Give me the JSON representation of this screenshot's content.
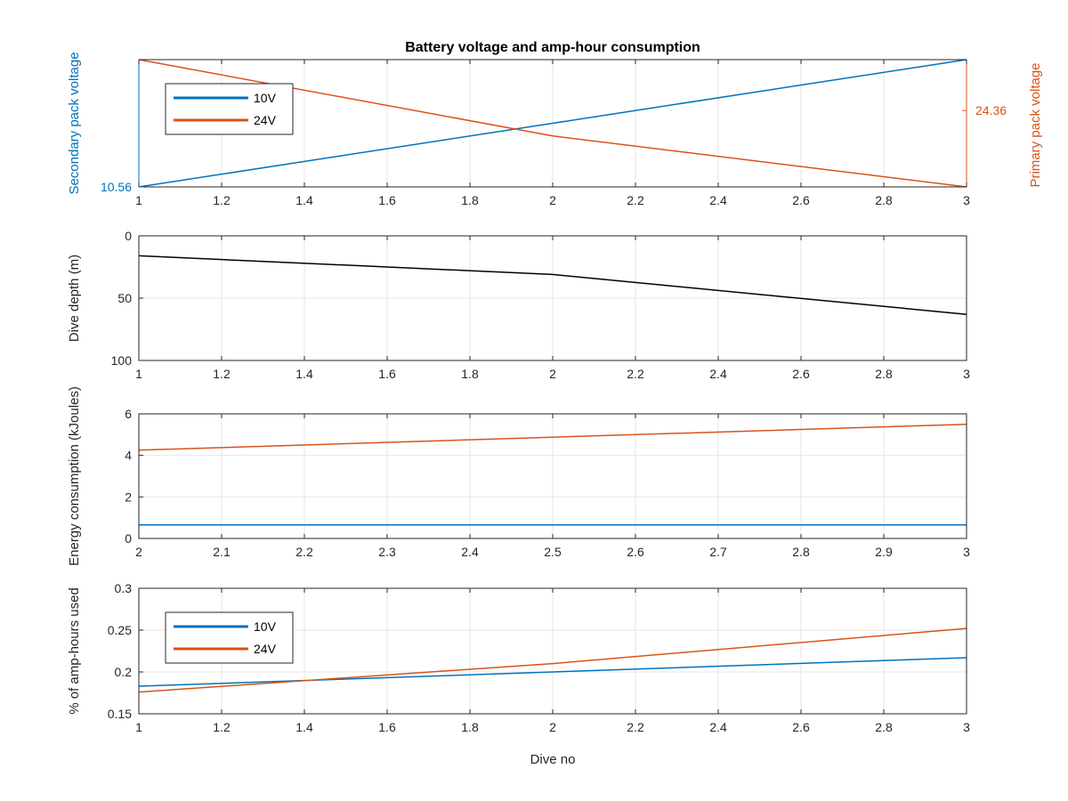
{
  "figure": {
    "title": "Battery voltage and amp-hour consumption",
    "colors": {
      "blue": "#0072BD",
      "orange": "#D95319",
      "black": "#000000",
      "grid": "#e6e6e6",
      "axis": "#262626"
    }
  },
  "chart_data": [
    {
      "id": "voltage",
      "type": "line",
      "title": "Battery voltage and amp-hour consumption",
      "xlabel": "",
      "ylabel_left": "Secondary pack voltage",
      "ylabel_right": "Primary pack voltage",
      "xlim": [
        1,
        3
      ],
      "xticks": [
        1,
        1.2,
        1.4,
        1.6,
        1.8,
        2,
        2.2,
        2.4,
        2.6,
        2.8,
        3
      ],
      "xticklabels": [
        "1",
        "1.2",
        "1.4",
        "1.6",
        "1.8",
        "2",
        "2.2",
        "2.4",
        "2.6",
        "2.8",
        "3"
      ],
      "ylim_left": [
        10.56,
        10.66
      ],
      "yticks_left": [
        10.56
      ],
      "yticklabels_left": [
        "10.56"
      ],
      "ylim_right": [
        24.3,
        24.4
      ],
      "yticks_right": [
        24.36
      ],
      "yticklabels_right": [
        "24.36"
      ],
      "grid": true,
      "legend": {
        "placement": "top-left",
        "entries": [
          "10V",
          "24V"
        ]
      },
      "series": [
        {
          "name": "10V",
          "axis": "left",
          "color": "#0072BD",
          "x": [
            1,
            2,
            3
          ],
          "y": [
            10.56,
            10.61,
            10.66
          ]
        },
        {
          "name": "24V",
          "axis": "right",
          "color": "#D95319",
          "x": [
            1,
            2,
            3
          ],
          "y": [
            24.4,
            24.34,
            24.3
          ]
        }
      ]
    },
    {
      "id": "depth",
      "type": "line",
      "xlabel": "",
      "ylabel": "Dive depth (m)",
      "xlim": [
        1,
        3
      ],
      "xticks": [
        1,
        1.2,
        1.4,
        1.6,
        1.8,
        2,
        2.2,
        2.4,
        2.6,
        2.8,
        3
      ],
      "xticklabels": [
        "1",
        "1.2",
        "1.4",
        "1.6",
        "1.8",
        "2",
        "2.2",
        "2.4",
        "2.6",
        "2.8",
        "3"
      ],
      "ylim": [
        0,
        100
      ],
      "y_reversed": true,
      "yticks": [
        0,
        50,
        100
      ],
      "yticklabels": [
        "0",
        "50",
        "100"
      ],
      "grid": true,
      "series": [
        {
          "color": "#000000",
          "x": [
            1,
            2,
            3
          ],
          "y": [
            16,
            31,
            63
          ]
        }
      ]
    },
    {
      "id": "energy",
      "type": "line",
      "xlabel": "",
      "ylabel": "Energy consumption (kJoules)",
      "xlim": [
        2,
        3
      ],
      "xticks": [
        2,
        2.1,
        2.2,
        2.3,
        2.4,
        2.5,
        2.6,
        2.7,
        2.8,
        2.9,
        3
      ],
      "xticklabels": [
        "2",
        "2.1",
        "2.2",
        "2.3",
        "2.4",
        "2.5",
        "2.6",
        "2.7",
        "2.8",
        "2.9",
        "3"
      ],
      "ylim": [
        0,
        6
      ],
      "yticks": [
        0,
        2,
        4,
        6
      ],
      "yticklabels": [
        "0",
        "2",
        "4",
        "6"
      ],
      "grid": true,
      "series": [
        {
          "color": "#0072BD",
          "x": [
            2,
            3
          ],
          "y": [
            0.65,
            0.65
          ]
        },
        {
          "color": "#D95319",
          "x": [
            2,
            3
          ],
          "y": [
            4.25,
            5.5
          ]
        }
      ]
    },
    {
      "id": "amphours",
      "type": "line",
      "xlabel": "Dive no",
      "ylabel": "% of amp-hours used",
      "xlim": [
        1,
        3
      ],
      "xticks": [
        1,
        1.2,
        1.4,
        1.6,
        1.8,
        2,
        2.2,
        2.4,
        2.6,
        2.8,
        3
      ],
      "xticklabels": [
        "1",
        "1.2",
        "1.4",
        "1.6",
        "1.8",
        "2",
        "2.2",
        "2.4",
        "2.6",
        "2.8",
        "3"
      ],
      "ylim": [
        0.15,
        0.3
      ],
      "yticks": [
        0.15,
        0.2,
        0.25,
        0.3
      ],
      "yticklabels": [
        "0.15",
        "0.2",
        "0.25",
        "0.3"
      ],
      "grid": true,
      "legend": {
        "placement": "top-left",
        "entries": [
          "10V",
          "24V"
        ]
      },
      "series": [
        {
          "name": "10V",
          "color": "#0072BD",
          "x": [
            1,
            2,
            3
          ],
          "y": [
            0.183,
            0.2,
            0.217
          ]
        },
        {
          "name": "24V",
          "color": "#D95319",
          "x": [
            1,
            2,
            3
          ],
          "y": [
            0.176,
            0.21,
            0.252
          ]
        }
      ]
    }
  ]
}
